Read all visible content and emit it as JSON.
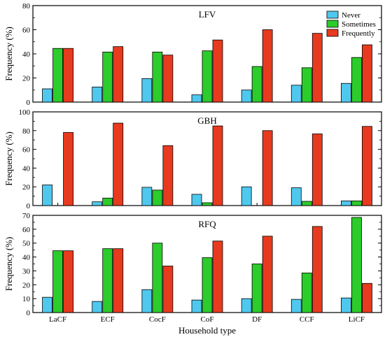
{
  "colors": {
    "Never": "#4fc8ee",
    "Sometimes": "#2bcc2b",
    "Frequently": "#e83a1e"
  },
  "chart_data": [
    {
      "type": "bar",
      "title": "LFV",
      "ylabel": "Frequency (%)",
      "xlabel": "",
      "ylim": [
        0,
        80
      ],
      "yticks": [
        0,
        20,
        40,
        60,
        80
      ],
      "categories": [
        "LaCF",
        "ECF",
        "CocF",
        "CoF",
        "DF",
        "CCF",
        "LiCF"
      ],
      "show_categories": false,
      "legend": "top-right",
      "series": [
        {
          "name": "Never",
          "values": [
            11,
            12.5,
            19.5,
            6,
            10,
            14,
            15.5
          ]
        },
        {
          "name": "Sometimes",
          "values": [
            44.5,
            41.5,
            41.5,
            42.5,
            29.5,
            28.5,
            37
          ]
        },
        {
          "name": "Frequently",
          "values": [
            44.5,
            46,
            39,
            51.5,
            60,
            57,
            47.5
          ]
        }
      ]
    },
    {
      "type": "bar",
      "title": "GBH",
      "ylabel": "Frequency (%)",
      "xlabel": "",
      "ylim": [
        0,
        100
      ],
      "yticks": [
        0,
        20,
        40,
        60,
        80,
        100
      ],
      "categories": [
        "LaCF",
        "ECF",
        "CocF",
        "CoF",
        "DF",
        "CCF",
        "LiCF"
      ],
      "show_categories": false,
      "series": [
        {
          "name": "Never",
          "values": [
            22,
            4,
            19.5,
            12,
            20,
            19,
            5
          ]
        },
        {
          "name": "Sometimes",
          "values": [
            0,
            8,
            16.5,
            3,
            0,
            4.5,
            5
          ]
        },
        {
          "name": "Frequently",
          "values": [
            78,
            88,
            64,
            85,
            80,
            76.5,
            84.5
          ]
        }
      ]
    },
    {
      "type": "bar",
      "title": "RFQ",
      "ylabel": "Frequency (%)",
      "xlabel": "Household type",
      "ylim": [
        0,
        70
      ],
      "yticks": [
        0,
        10,
        20,
        30,
        40,
        50,
        60,
        70
      ],
      "categories": [
        "LaCF",
        "ECF",
        "CocF",
        "CoF",
        "DF",
        "CCF",
        "LiCF"
      ],
      "show_categories": true,
      "series": [
        {
          "name": "Never",
          "values": [
            11,
            8,
            16.5,
            9,
            10,
            9.5,
            10.5
          ]
        },
        {
          "name": "Sometimes",
          "values": [
            44.5,
            46,
            50,
            39.5,
            35,
            28.5,
            68.5
          ]
        },
        {
          "name": "Frequently",
          "values": [
            44.5,
            46,
            33.5,
            51.5,
            55,
            62,
            21
          ]
        }
      ]
    }
  ]
}
